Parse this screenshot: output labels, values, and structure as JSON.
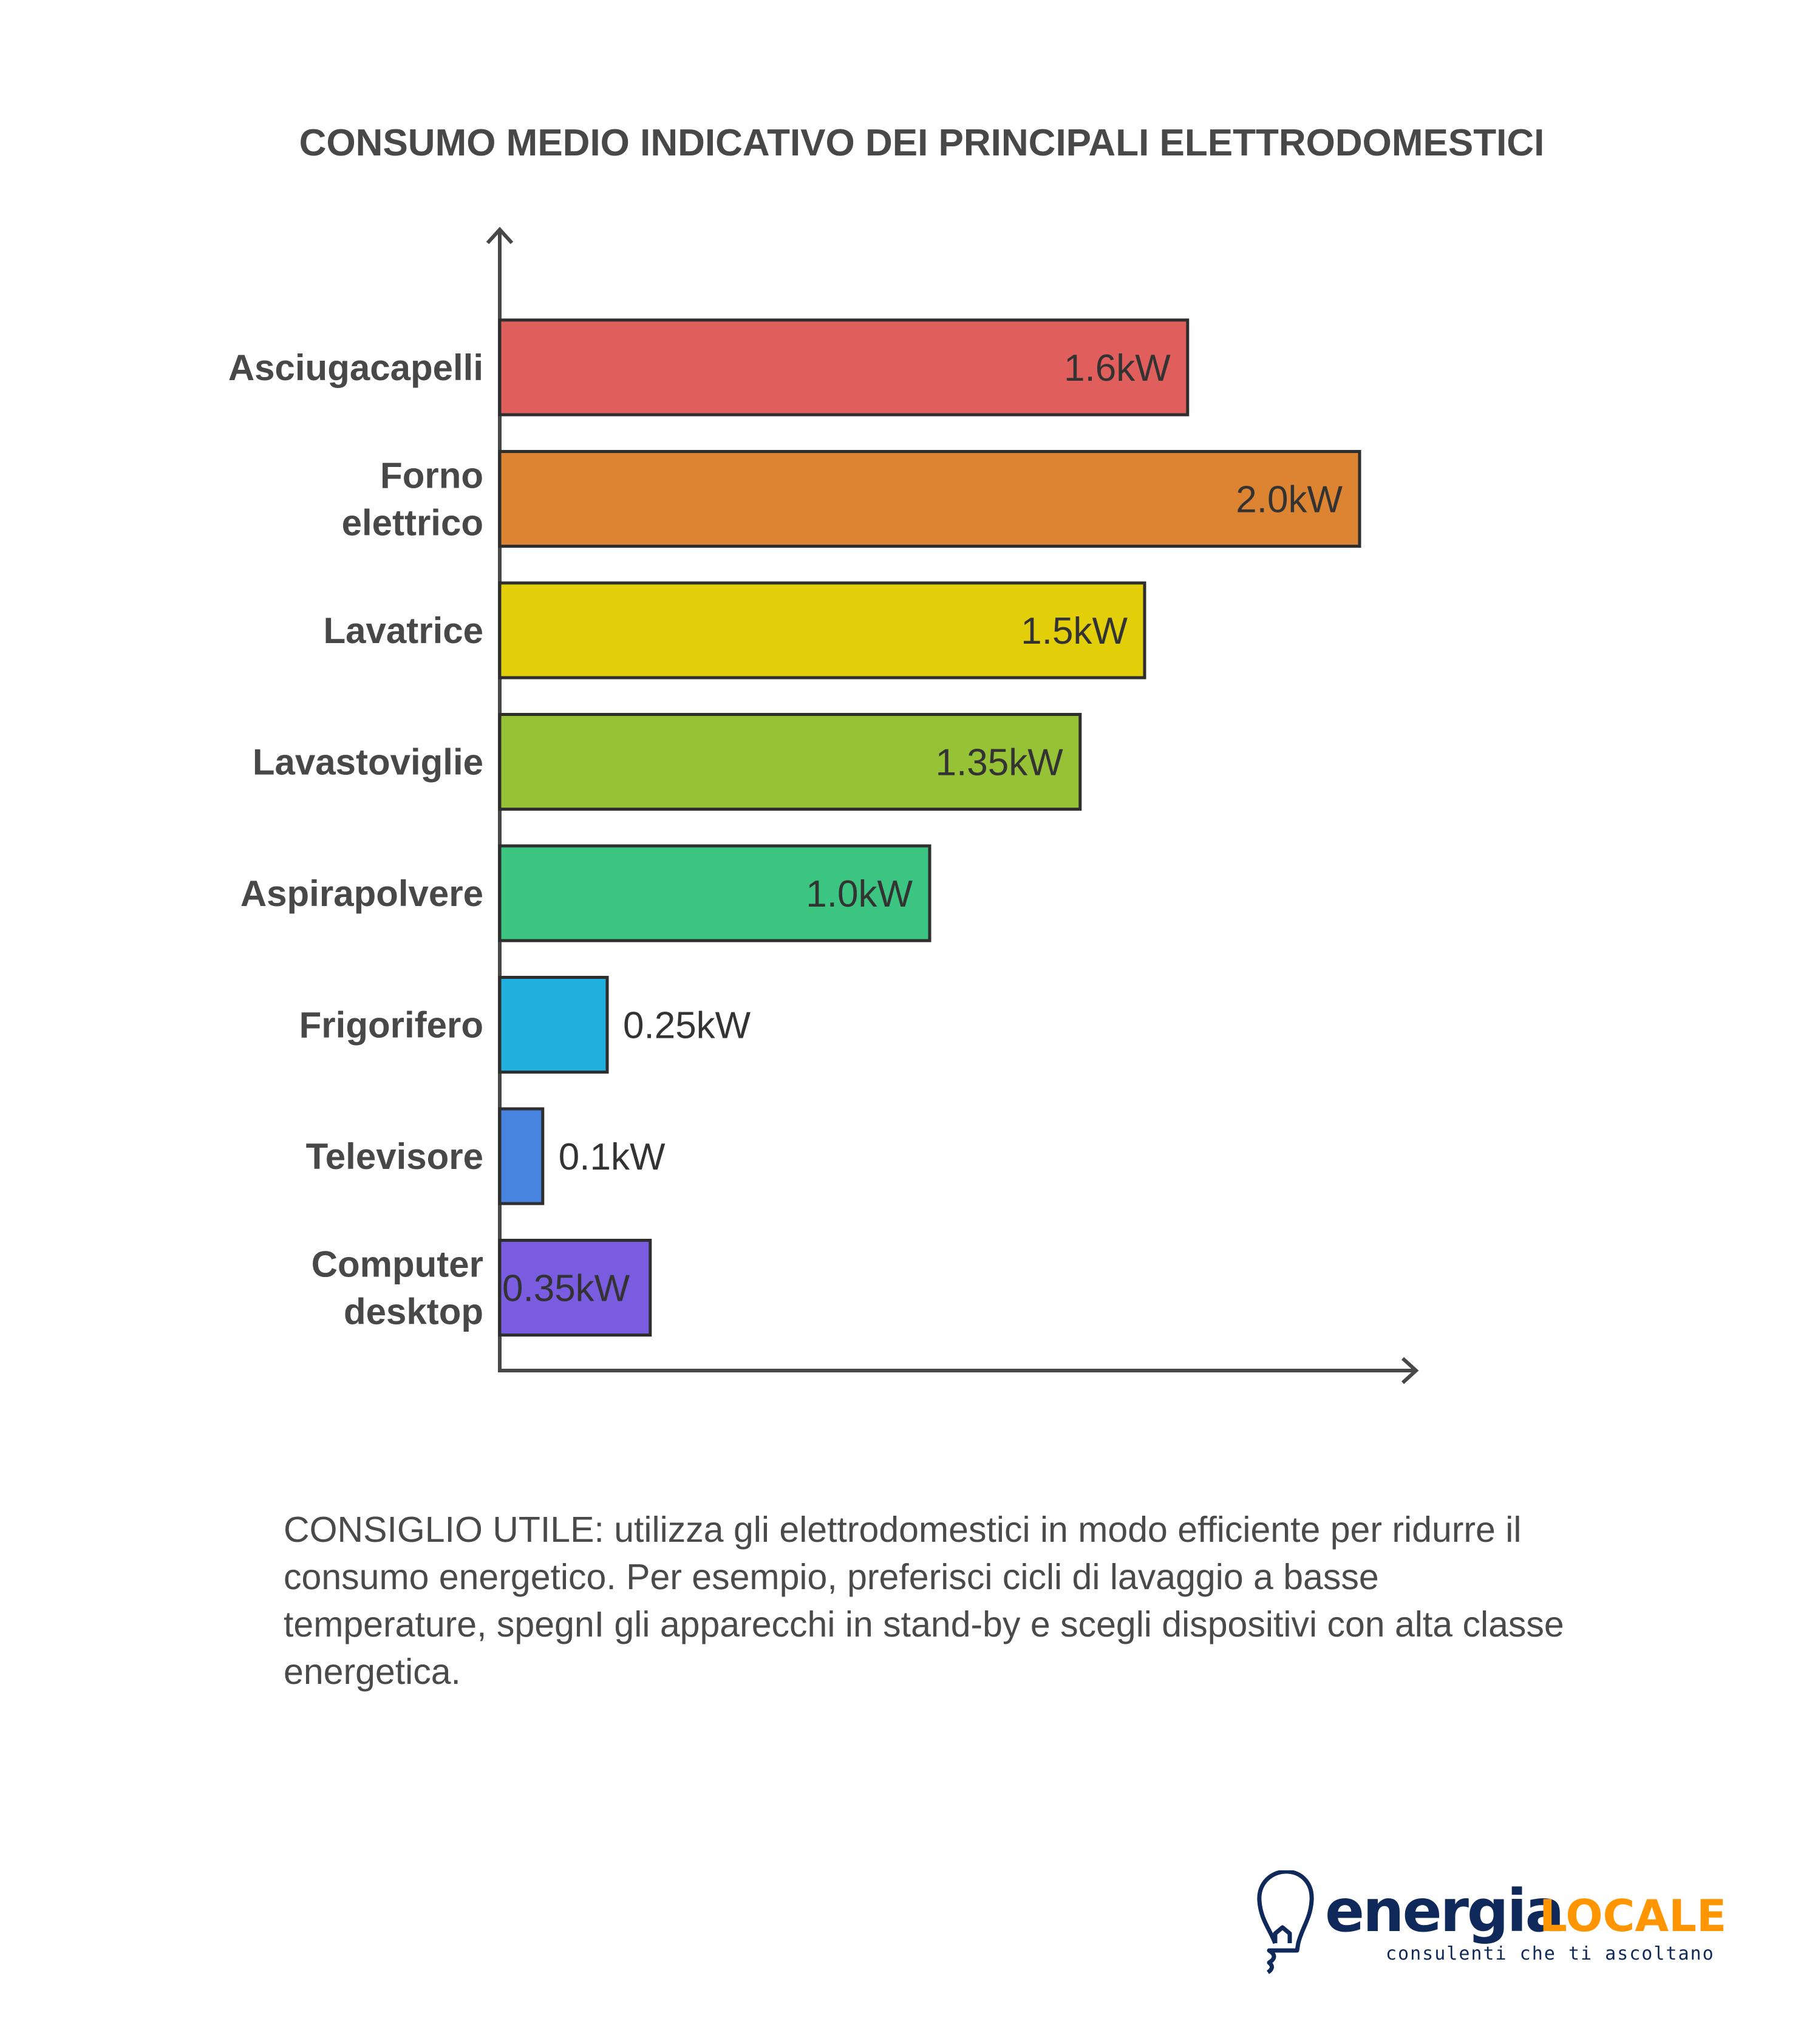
{
  "chart_data": {
    "type": "bar",
    "orientation": "horizontal",
    "title": "CONSUMO MEDIO INDICATIVO DEI PRINCIPALI ELETTRODOMESTICI",
    "categories": [
      [
        "Asciugacapelli"
      ],
      [
        "Forno",
        "elettrico"
      ],
      [
        "Lavatrice"
      ],
      [
        "Lavastoviglie"
      ],
      [
        "Aspirapolvere"
      ],
      [
        "Frigorifero"
      ],
      [
        "Televisore"
      ],
      [
        "Computer",
        "desktop"
      ]
    ],
    "values": [
      1.6,
      2.0,
      1.5,
      1.35,
      1.0,
      0.25,
      0.1,
      0.35
    ],
    "data_labels": [
      "1.6kW",
      "2.0kW",
      "1.5kW",
      "1.35kW",
      "1.0kW",
      "0.25kW",
      "0.1kW",
      "0.35kW"
    ],
    "colors": [
      "#E05F5C",
      "#DC8432",
      "#E2CF0A",
      "#96C236",
      "#3CC580",
      "#1FB0E0",
      "#4784E0",
      "#7A5CE0"
    ],
    "unit": "kW",
    "xlim": [
      0,
      2.0
    ],
    "grid": false,
    "axis_ticks": false
  },
  "tip": "CONSIGLIO UTILE: utilizza gli elettrodomestici in modo efficiente per ridurre il consumo energetico. Per esempio, preferisci cicli di lavaggio a basse temperature, spegnI gli apparecchi in stand-by e scegli dispositivi con alta classe energetica.",
  "logo": {
    "word1": "energia",
    "word2": "LOCALE",
    "tagline": "consulenti che ti ascoltano",
    "color_primary": "#0F2A5A",
    "color_accent": "#FF9500"
  }
}
